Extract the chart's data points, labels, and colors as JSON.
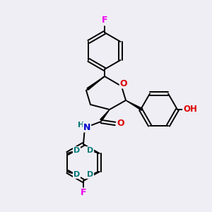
{
  "background_color": "#eeeef4",
  "bond_color": "#000000",
  "atom_colors": {
    "F": "#ee00ee",
    "O": "#dd0000",
    "N": "#0000cc",
    "H": "#007777",
    "D": "#007777",
    "C": "#000000"
  },
  "figsize": [
    3.0,
    3.0
  ],
  "dpi": 100
}
